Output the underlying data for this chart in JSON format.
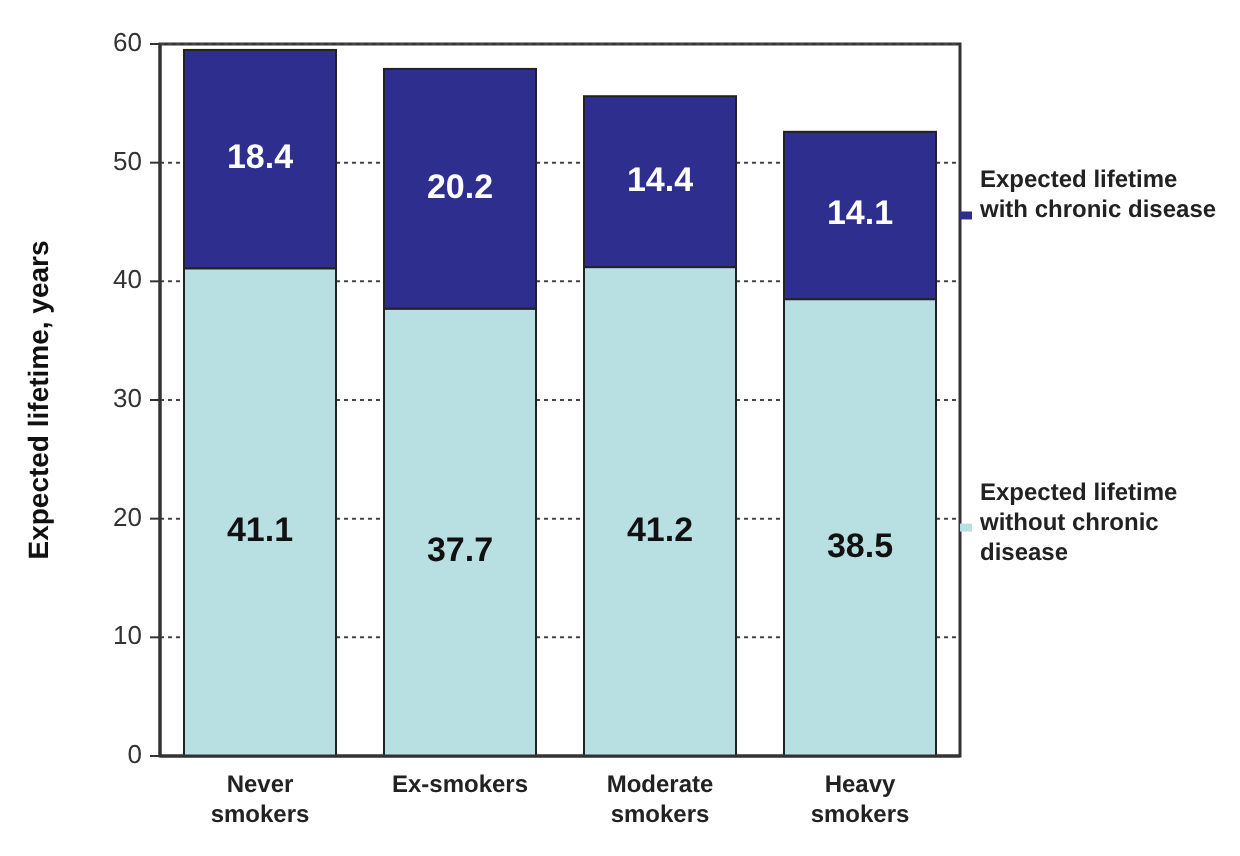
{
  "chart_data": {
    "type": "bar",
    "stacked": true,
    "ylabel": "Expected lifetime, years",
    "categories": [
      "Never smokers",
      "Ex-smokers",
      "Moderate smokers",
      "Heavy smokers"
    ],
    "series": [
      {
        "name": "Expected lifetime without chronic disease",
        "color": "#b8e0e2",
        "values": [
          41.1,
          37.7,
          41.2,
          38.5
        ]
      },
      {
        "name": "Expected lifetime with chronic disease",
        "color": "#2e2e8e",
        "values": [
          18.4,
          20.2,
          14.4,
          14.1
        ]
      }
    ],
    "ylim": [
      0,
      60
    ],
    "yticks": [
      0,
      10,
      20,
      30,
      40,
      50,
      60
    ],
    "grid": "y",
    "data_labels": true,
    "legend": "right"
  }
}
